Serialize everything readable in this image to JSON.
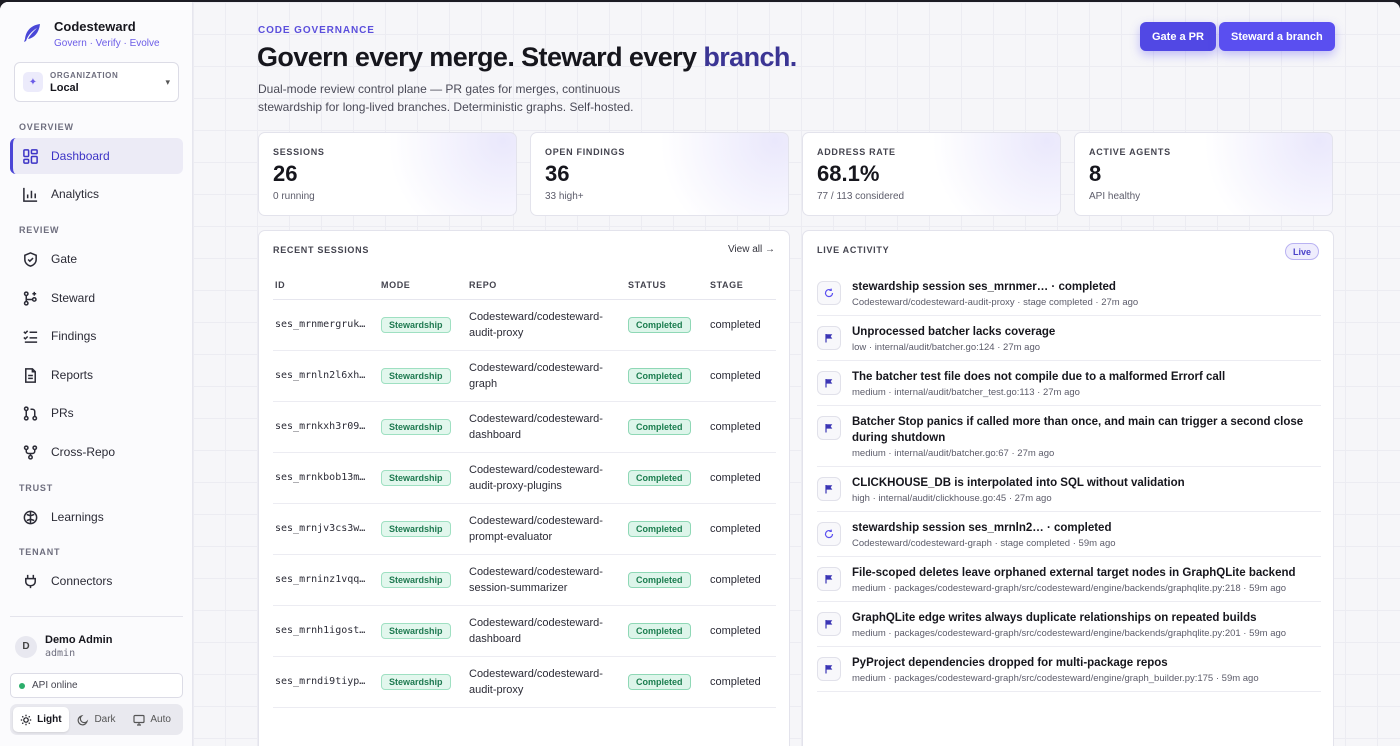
{
  "brand": {
    "name": "Codesteward",
    "tagline": "Govern · Verify · Evolve"
  },
  "organization": {
    "label": "ORGANIZATION",
    "value": "Local"
  },
  "nav": {
    "sections": {
      "overview": "OVERVIEW",
      "review": "REVIEW",
      "trust": "TRUST",
      "tenant": "TENANT"
    },
    "items": [
      {
        "label": "Dashboard",
        "icon": "dashboard-icon"
      },
      {
        "label": "Analytics",
        "icon": "analytics-icon"
      },
      {
        "label": "Gate",
        "icon": "shield-icon"
      },
      {
        "label": "Steward",
        "icon": "branch-plus-icon"
      },
      {
        "label": "Findings",
        "icon": "checklist-icon"
      },
      {
        "label": "Reports",
        "icon": "document-icon"
      },
      {
        "label": "PRs",
        "icon": "pull-request-icon"
      },
      {
        "label": "Cross-Repo",
        "icon": "fork-icon"
      },
      {
        "label": "Learnings",
        "icon": "brain-icon"
      },
      {
        "label": "Connectors",
        "icon": "plug-icon"
      }
    ]
  },
  "user": {
    "initial": "D",
    "name": "Demo Admin",
    "role": "admin"
  },
  "api_status": "API online",
  "theme": {
    "light": "Light",
    "dark": "Dark",
    "auto": "Auto"
  },
  "header": {
    "eyebrow": "CODE GOVERNANCE",
    "title_main": "Govern every merge. Steward every",
    "title_accent": "branch.",
    "subtitle": "Dual-mode review control plane — PR gates for merges, continuous stewardship for long-lived branches. Deterministic graphs. Self-hosted.",
    "gate_button": "Gate a PR",
    "steward_button": "Steward a branch"
  },
  "stats": [
    {
      "label": "SESSIONS",
      "value": "26",
      "sub": "0 running"
    },
    {
      "label": "OPEN FINDINGS",
      "value": "36",
      "sub": "33 high+"
    },
    {
      "label": "ADDRESS RATE",
      "value": "68.1%",
      "sub": "77 / 113 considered"
    },
    {
      "label": "ACTIVE AGENTS",
      "value": "8",
      "sub": "API healthy"
    }
  ],
  "sessions": {
    "title": "RECENT SESSIONS",
    "view_all": "View all →",
    "columns": [
      "ID",
      "MODE",
      "REPO",
      "STATUS",
      "STAGE"
    ],
    "rows": [
      {
        "id": "ses_mrnmergruk…",
        "mode": "Stewardship",
        "repo1": "Codesteward/codesteward-",
        "repo2": "audit-proxy",
        "status": "Completed",
        "stage": "completed"
      },
      {
        "id": "ses_mrnln2l6xh…",
        "mode": "Stewardship",
        "repo1": "Codesteward/codesteward-",
        "repo2": "graph",
        "status": "Completed",
        "stage": "completed"
      },
      {
        "id": "ses_mrnkxh3r09…",
        "mode": "Stewardship",
        "repo1": "Codesteward/codesteward-",
        "repo2": "dashboard",
        "status": "Completed",
        "stage": "completed"
      },
      {
        "id": "ses_mrnkbob13m…",
        "mode": "Stewardship",
        "repo1": "Codesteward/codesteward-",
        "repo2": "audit-proxy-plugins",
        "status": "Completed",
        "stage": "completed"
      },
      {
        "id": "ses_mrnjv3cs3w…",
        "mode": "Stewardship",
        "repo1": "Codesteward/codesteward-",
        "repo2": "prompt-evaluator",
        "status": "Completed",
        "stage": "completed"
      },
      {
        "id": "ses_mrninz1vqq…",
        "mode": "Stewardship",
        "repo1": "Codesteward/codesteward-",
        "repo2": "session-summarizer",
        "status": "Completed",
        "stage": "completed"
      },
      {
        "id": "ses_mrnh1igost…",
        "mode": "Stewardship",
        "repo1": "Codesteward/codesteward-",
        "repo2": "dashboard",
        "status": "Completed",
        "stage": "completed"
      },
      {
        "id": "ses_mrndi9tiyp…",
        "mode": "Stewardship",
        "repo1": "Codesteward/codesteward-",
        "repo2": "audit-proxy",
        "status": "Completed",
        "stage": "completed"
      }
    ]
  },
  "activity": {
    "title": "LIVE ACTIVITY",
    "badge": "Live",
    "items": [
      {
        "kind": "session",
        "title": "stewardship session ses_mrnmer… · completed",
        "meta": "Codesteward/codesteward-audit-proxy · stage completed · 27m ago"
      },
      {
        "kind": "finding",
        "title": "Unprocessed batcher lacks coverage",
        "meta": "low · internal/audit/batcher.go:124 · 27m ago"
      },
      {
        "kind": "finding",
        "title": "The batcher test file does not compile due to a malformed Errorf call",
        "meta": "medium · internal/audit/batcher_test.go:113 · 27m ago"
      },
      {
        "kind": "finding",
        "title": "Batcher Stop panics if called more than once, and main can trigger a second close during shutdown",
        "meta": "medium · internal/audit/batcher.go:67 · 27m ago"
      },
      {
        "kind": "finding",
        "title": "CLICKHOUSE_DB is interpolated into SQL without validation",
        "meta": "high · internal/audit/clickhouse.go:45 · 27m ago"
      },
      {
        "kind": "session",
        "title": "stewardship session ses_mrnln2… · completed",
        "meta": "Codesteward/codesteward-graph · stage completed · 59m ago"
      },
      {
        "kind": "finding",
        "title": "File-scoped deletes leave orphaned external target nodes in GraphQLite backend",
        "meta": "medium · packages/codesteward-graph/src/codesteward/engine/backends/graphqlite.py:218 · 59m ago"
      },
      {
        "kind": "finding",
        "title": "GraphQLite edge writes always duplicate relationships on repeated builds",
        "meta": "medium · packages/codesteward-graph/src/codesteward/engine/backends/graphqlite.py:201 · 59m ago"
      },
      {
        "kind": "finding",
        "title": "PyProject dependencies dropped for multi-package repos",
        "meta": "medium · packages/codesteward-graph/src/codesteward/engine/graph_builder.py:175 · 59m ago"
      }
    ]
  },
  "colors": {
    "accent": "#5a4ff0",
    "success": "#1b7d4f",
    "online": "#2cae6b"
  }
}
